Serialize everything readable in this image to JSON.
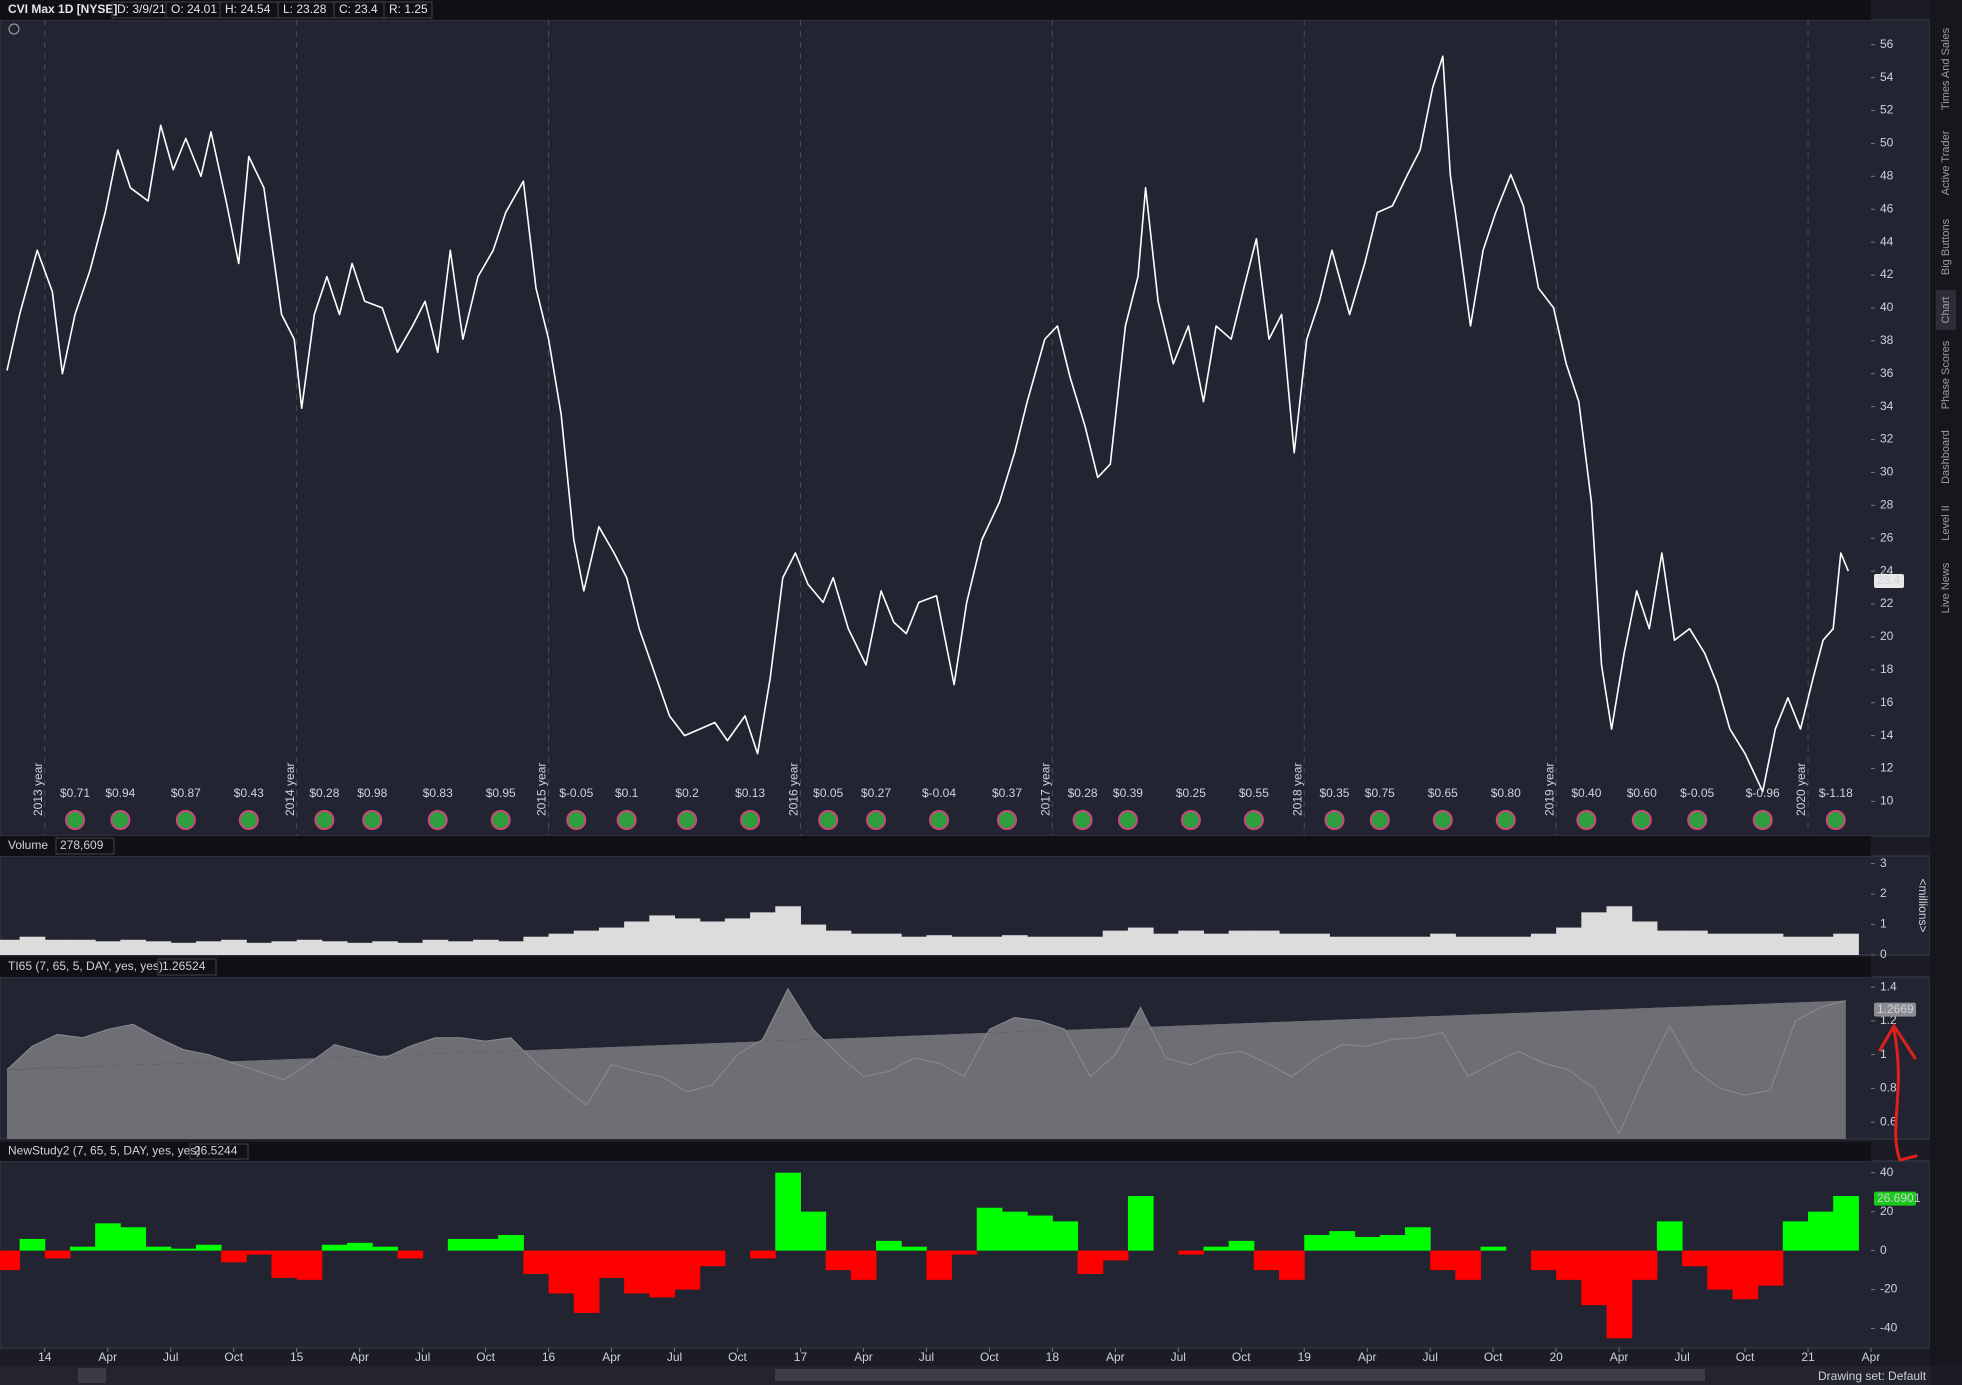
{
  "header": {
    "symbol": "CVI Max 1D [NYSE]",
    "fields": [
      "D: 3/9/21",
      "O: 24.01",
      "H: 24.54",
      "L: 23.28",
      "C: 23.4",
      "R: 1.25"
    ]
  },
  "side_tabs": [
    "Times And Sales",
    "Active Trader",
    "Big Buttons",
    "Chart",
    "Phase Scores",
    "Dashboard",
    "Level II",
    "Live News"
  ],
  "footer": "Drawing set: Default",
  "chart_data": [
    {
      "type": "line",
      "color": "#ffffff",
      "x": [
        2013.85,
        2013.9,
        2013.97,
        2014.03,
        2014.07,
        2014.12,
        2014.18,
        2014.24,
        2014.29,
        2014.34,
        2014.41,
        2014.46,
        2014.51,
        2014.56,
        2014.62,
        2014.66,
        2014.72,
        2014.77,
        2014.81,
        2014.87,
        2014.94,
        2014.99,
        2015.02,
        2015.07,
        2015.12,
        2015.17,
        2015.22,
        2015.27,
        2015.34,
        2015.4,
        2015.46,
        2015.51,
        2015.56,
        2015.61,
        2015.66,
        2015.72,
        2015.78,
        2015.83,
        2015.9,
        2015.95,
        2016.0,
        2016.05,
        2016.1,
        2016.14,
        2016.2,
        2016.26,
        2016.31,
        2016.36,
        2016.41,
        2016.48,
        2016.54,
        2016.6,
        2016.66,
        2016.71,
        2016.78,
        2016.83,
        2016.88,
        2016.93,
        2016.98,
        2017.03,
        2017.09,
        2017.13,
        2017.19,
        2017.26,
        2017.32,
        2017.37,
        2017.42,
        2017.47,
        2017.54,
        2017.61,
        2017.66,
        2017.72,
        2017.79,
        2017.85,
        2017.9,
        2017.97,
        2018.02,
        2018.07,
        2018.13,
        2018.18,
        2018.23,
        2018.29,
        2018.34,
        2018.37,
        2018.42,
        2018.48,
        2018.54,
        2018.6,
        2018.65,
        2018.71,
        2018.76,
        2018.81,
        2018.86,
        2018.91,
        2018.96,
        2019.01,
        2019.06,
        2019.11,
        2019.18,
        2019.24,
        2019.29,
        2019.35,
        2019.41,
        2019.46,
        2019.51,
        2019.55,
        2019.58,
        2019.62,
        2019.66,
        2019.71,
        2019.76,
        2019.82,
        2019.87,
        2019.93,
        2019.99,
        2020.04,
        2020.09,
        2020.14,
        2020.18,
        2020.22,
        2020.27,
        2020.32,
        2020.37,
        2020.42,
        2020.47,
        2020.53,
        2020.59,
        2020.64,
        2020.69,
        2020.75,
        2020.82,
        2020.87,
        2020.92,
        2020.97,
        2021.02,
        2021.06,
        2021.1,
        2021.13,
        2021.16
      ],
      "values": [
        36.2,
        39.6,
        43.5,
        41,
        36,
        39.6,
        42.3,
        45.8,
        49.6,
        47.3,
        46.5,
        51.1,
        48.4,
        50.3,
        48,
        50.7,
        46.5,
        42.7,
        49.2,
        47.3,
        39.6,
        38.1,
        33.9,
        39.6,
        41.9,
        39.6,
        42.7,
        40.4,
        40,
        37.3,
        38.9,
        40.4,
        37.3,
        43.5,
        38.1,
        41.9,
        43.5,
        45.8,
        47.7,
        41.2,
        38.1,
        33.5,
        25.9,
        22.8,
        26.7,
        25.1,
        23.6,
        20.5,
        18.3,
        15.2,
        14,
        14.4,
        14.8,
        13.7,
        15.2,
        12.9,
        17.5,
        23.6,
        25.1,
        23.2,
        22.1,
        23.6,
        20.5,
        18.3,
        22.8,
        20.9,
        20.2,
        22.1,
        22.5,
        17.1,
        22.1,
        25.9,
        28.2,
        31.2,
        34.3,
        38.1,
        38.9,
        35.8,
        32.8,
        29.7,
        30.5,
        38.9,
        41.9,
        47.3,
        40.4,
        36.6,
        38.9,
        34.3,
        38.9,
        38.1,
        41.2,
        44.2,
        38.1,
        39.6,
        31.2,
        38.1,
        40.4,
        43.5,
        39.6,
        42.7,
        45.8,
        46.2,
        48.1,
        49.6,
        53.4,
        55.3,
        48.1,
        43.5,
        38.9,
        43.5,
        45.8,
        48.1,
        46.2,
        41.2,
        40,
        36.6,
        34.3,
        28.2,
        18.3,
        14.4,
        19,
        22.8,
        20.5,
        25.1,
        19.8,
        20.5,
        19,
        17.1,
        14.4,
        12.9,
        10.6,
        14.4,
        16.3,
        14.4,
        17.5,
        19.8,
        20.5,
        25.1,
        24
      ],
      "xlim": [
        2013.85,
        2021.25
      ],
      "ylim": [
        7.9,
        57.5
      ],
      "yticks": [
        10,
        12,
        14,
        16,
        18,
        20,
        22,
        24,
        26,
        28,
        30,
        32,
        34,
        36,
        38,
        40,
        42,
        44,
        46,
        48,
        50,
        52,
        54,
        56
      ],
      "last_value": 23.4,
      "year_lines": [
        {
          "value": 2014,
          "label": "2013 year"
        },
        {
          "value": 2015,
          "label": "2014 year"
        },
        {
          "value": 2016,
          "label": "2015 year"
        },
        {
          "value": 2017,
          "label": "2016 year"
        },
        {
          "value": 2018,
          "label": "2017 year"
        },
        {
          "value": 2019,
          "label": "2018 year"
        },
        {
          "value": 2020,
          "label": "2019 year"
        },
        {
          "value": 2021,
          "label": "2020 year"
        }
      ],
      "events": {
        "x": [
          2014.12,
          2014.3,
          2014.56,
          2014.81,
          2015.11,
          2015.3,
          2015.56,
          2015.81,
          2016.11,
          2016.31,
          2016.55,
          2016.8,
          2017.11,
          2017.3,
          2017.55,
          2017.82,
          2018.12,
          2018.3,
          2018.55,
          2018.8,
          2019.12,
          2019.3,
          2019.55,
          2019.8,
          2020.12,
          2020.34,
          2020.56,
          2020.82,
          2021.11
        ],
        "labels": [
          "$0.71",
          "$0.94",
          "$0.87",
          "$0.43",
          "$0.28",
          "$0.98",
          "$0.83",
          "$0.95",
          "$-0.05",
          "$0.1",
          "$0.2",
          "$0.13",
          "$0.05",
          "$0.27",
          "$-0.04",
          "$0.37",
          "$0.28",
          "$0.39",
          "$0.25",
          "$0.55",
          "$0.35",
          "$0.75",
          "$0.65",
          "$0.80",
          "$0.40",
          "$0.60",
          "$-0.05",
          "$-0.96",
          "$-1.18"
        ]
      }
    },
    {
      "type": "bar",
      "title": "Volume",
      "subtitle": "278,609",
      "y_label": "<millions>",
      "color": "#dcdcdc",
      "x": [
        2013.85,
        2013.95,
        2014.05,
        2014.15,
        2014.25,
        2014.35,
        2014.45,
        2014.55,
        2014.65,
        2014.75,
        2014.85,
        2014.95,
        2015.05,
        2015.15,
        2015.25,
        2015.35,
        2015.45,
        2015.55,
        2015.65,
        2015.75,
        2015.85,
        2015.95,
        2016.05,
        2016.15,
        2016.25,
        2016.35,
        2016.45,
        2016.55,
        2016.65,
        2016.75,
        2016.85,
        2016.95,
        2017.05,
        2017.15,
        2017.25,
        2017.35,
        2017.45,
        2017.55,
        2017.65,
        2017.75,
        2017.85,
        2017.95,
        2018.05,
        2018.15,
        2018.25,
        2018.35,
        2018.45,
        2018.55,
        2018.65,
        2018.75,
        2018.85,
        2018.95,
        2019.05,
        2019.15,
        2019.25,
        2019.35,
        2019.45,
        2019.55,
        2019.65,
        2019.75,
        2019.85,
        2019.95,
        2020.05,
        2020.15,
        2020.25,
        2020.35,
        2020.45,
        2020.55,
        2020.65,
        2020.75,
        2020.85,
        2020.95,
        2021.05,
        2021.15
      ],
      "values": [
        0.5,
        0.6,
        0.5,
        0.5,
        0.45,
        0.5,
        0.45,
        0.4,
        0.45,
        0.5,
        0.4,
        0.45,
        0.5,
        0.45,
        0.4,
        0.45,
        0.4,
        0.5,
        0.45,
        0.5,
        0.45,
        0.6,
        0.7,
        0.8,
        0.9,
        1.1,
        1.3,
        1.2,
        1.1,
        1.2,
        1.4,
        1.6,
        1.0,
        0.8,
        0.7,
        0.7,
        0.6,
        0.65,
        0.6,
        0.6,
        0.65,
        0.6,
        0.6,
        0.6,
        0.8,
        0.9,
        0.7,
        0.8,
        0.7,
        0.8,
        0.8,
        0.7,
        0.7,
        0.6,
        0.6,
        0.6,
        0.6,
        0.7,
        0.6,
        0.6,
        0.6,
        0.7,
        0.9,
        1.4,
        1.6,
        1.1,
        0.8,
        0.8,
        0.7,
        0.7,
        0.7,
        0.6,
        0.6,
        0.7
      ],
      "xlim": [
        2013.85,
        2021.25
      ],
      "ylim": [
        0,
        3.25
      ],
      "yticks": [
        0,
        1,
        2,
        3
      ]
    },
    {
      "type": "area",
      "title": "TI65 (7, 65, 5, DAY, yes, yes)",
      "subtitle": "1.26524",
      "color": "#6e6f74",
      "x": [
        2013.85,
        2013.95,
        2014.05,
        2014.15,
        2014.25,
        2014.35,
        2014.45,
        2014.55,
        2014.65,
        2014.75,
        2014.85,
        2014.95,
        2015.05,
        2015.15,
        2015.25,
        2015.35,
        2015.45,
        2015.55,
        2015.65,
        2015.75,
        2015.85,
        2015.95,
        2016.05,
        2016.15,
        2016.25,
        2016.35,
        2016.45,
        2016.55,
        2016.65,
        2016.75,
        2016.85,
        2016.95,
        2017.05,
        2017.15,
        2017.25,
        2017.35,
        2017.45,
        2017.55,
        2017.65,
        2017.75,
        2017.85,
        2017.95,
        2018.05,
        2018.15,
        2018.25,
        2018.35,
        2018.45,
        2018.55,
        2018.65,
        2018.75,
        2018.85,
        2018.95,
        2019.05,
        2019.15,
        2019.25,
        2019.35,
        2019.45,
        2019.55,
        2019.65,
        2019.75,
        2019.85,
        2019.95,
        2020.05,
        2020.15,
        2020.25,
        2020.35,
        2020.45,
        2020.55,
        2020.65,
        2020.75,
        2020.85,
        2020.95,
        2021.05,
        2021.15
      ],
      "values": [
        0.91,
        1.05,
        1.12,
        1.1,
        1.15,
        1.18,
        1.1,
        1.03,
        1.0,
        0.95,
        0.9,
        0.85,
        0.95,
        1.06,
        1.02,
        0.98,
        1.05,
        1.1,
        1.1,
        1.08,
        1.1,
        0.95,
        0.82,
        0.7,
        0.94,
        0.9,
        0.87,
        0.78,
        0.82,
        1.0,
        1.09,
        1.39,
        1.15,
        1.0,
        0.87,
        0.9,
        0.98,
        0.95,
        0.87,
        1.15,
        1.22,
        1.2,
        1.15,
        0.87,
        1.0,
        1.28,
        0.98,
        0.94,
        1.0,
        1.02,
        0.95,
        0.87,
        0.98,
        1.06,
        1.05,
        1.09,
        1.1,
        1.13,
        0.87,
        0.95,
        1.02,
        0.95,
        0.91,
        0.8,
        0.53,
        0.87,
        1.17,
        0.91,
        0.8,
        0.76,
        0.79,
        1.2,
        1.28,
        1.32
      ],
      "xlim": [
        2013.85,
        2021.25
      ],
      "ylim": [
        0.5,
        1.46
      ],
      "yticks": [
        0.6,
        0.8,
        1,
        1.2,
        1.4
      ],
      "last_value": 1.2669
    },
    {
      "type": "bar",
      "title": "NewStudy2 (7, 65, 5, DAY, yes, yes)",
      "subtitle": "26.5244",
      "positive_color": "#00ff00",
      "negative_color": "#ff0000",
      "x": [
        2013.85,
        2013.95,
        2014.05,
        2014.15,
        2014.25,
        2014.35,
        2014.45,
        2014.55,
        2014.65,
        2014.75,
        2014.85,
        2014.95,
        2015.05,
        2015.15,
        2015.25,
        2015.35,
        2015.45,
        2015.55,
        2015.65,
        2015.75,
        2015.85,
        2015.95,
        2016.05,
        2016.15,
        2016.25,
        2016.35,
        2016.45,
        2016.55,
        2016.65,
        2016.75,
        2016.85,
        2016.95,
        2017.05,
        2017.15,
        2017.25,
        2017.35,
        2017.45,
        2017.55,
        2017.65,
        2017.75,
        2017.85,
        2017.95,
        2018.05,
        2018.15,
        2018.25,
        2018.35,
        2018.45,
        2018.55,
        2018.65,
        2018.75,
        2018.85,
        2018.95,
        2019.05,
        2019.15,
        2019.25,
        2019.35,
        2019.45,
        2019.55,
        2019.65,
        2019.75,
        2019.85,
        2019.95,
        2020.05,
        2020.15,
        2020.25,
        2020.35,
        2020.45,
        2020.55,
        2020.65,
        2020.75,
        2020.85,
        2020.95,
        2021.05,
        2021.15
      ],
      "values": [
        -10,
        6,
        -4,
        2,
        14,
        12,
        2,
        1,
        3,
        -6,
        -2,
        -14,
        -15,
        3,
        4,
        2,
        -4,
        0,
        6,
        6,
        8,
        -12,
        -22,
        -32,
        -14,
        -22,
        -24,
        -20,
        -8,
        0,
        -4,
        40,
        20,
        -10,
        -15,
        5,
        2,
        -15,
        -2,
        22,
        20,
        18,
        15,
        -12,
        -5,
        28,
        0,
        -2,
        2,
        5,
        -10,
        -15,
        8,
        10,
        7,
        8,
        12,
        -10,
        -15,
        2,
        0,
        -10,
        -15,
        -28,
        -45,
        -15,
        15,
        -8,
        -20,
        -25,
        -18,
        15,
        20,
        28
      ],
      "xlim": [
        2013.85,
        2021.25
      ],
      "ylim": [
        -50,
        46
      ],
      "yticks": [
        -40,
        -20,
        0,
        20,
        40
      ],
      "last_value": 26.6901,
      "xticks": [
        {
          "value": 2014,
          "label": "14"
        },
        {
          "value": 2014.25,
          "label": "Apr"
        },
        {
          "value": 2014.5,
          "label": "Jul"
        },
        {
          "value": 2014.75,
          "label": "Oct"
        },
        {
          "value": 2015,
          "label": "15"
        },
        {
          "value": 2015.25,
          "label": "Apr"
        },
        {
          "value": 2015.5,
          "label": "Jul"
        },
        {
          "value": 2015.75,
          "label": "Oct"
        },
        {
          "value": 2016,
          "label": "16"
        },
        {
          "value": 2016.25,
          "label": "Apr"
        },
        {
          "value": 2016.5,
          "label": "Jul"
        },
        {
          "value": 2016.75,
          "label": "Oct"
        },
        {
          "value": 2017,
          "label": "17"
        },
        {
          "value": 2017.25,
          "label": "Apr"
        },
        {
          "value": 2017.5,
          "label": "Jul"
        },
        {
          "value": 2017.75,
          "label": "Oct"
        },
        {
          "value": 2018,
          "label": "18"
        },
        {
          "value": 2018.25,
          "label": "Apr"
        },
        {
          "value": 2018.5,
          "label": "Jul"
        },
        {
          "value": 2018.75,
          "label": "Oct"
        },
        {
          "value": 2019,
          "label": "19"
        },
        {
          "value": 2019.25,
          "label": "Apr"
        },
        {
          "value": 2019.5,
          "label": "Jul"
        },
        {
          "value": 2019.75,
          "label": "Oct"
        },
        {
          "value": 2020,
          "label": "20"
        },
        {
          "value": 2020.25,
          "label": "Apr"
        },
        {
          "value": 2020.5,
          "label": "Jul"
        },
        {
          "value": 2020.75,
          "label": "Oct"
        },
        {
          "value": 2021,
          "label": "21"
        },
        {
          "value": 2021.25,
          "label": "Apr"
        }
      ]
    }
  ]
}
